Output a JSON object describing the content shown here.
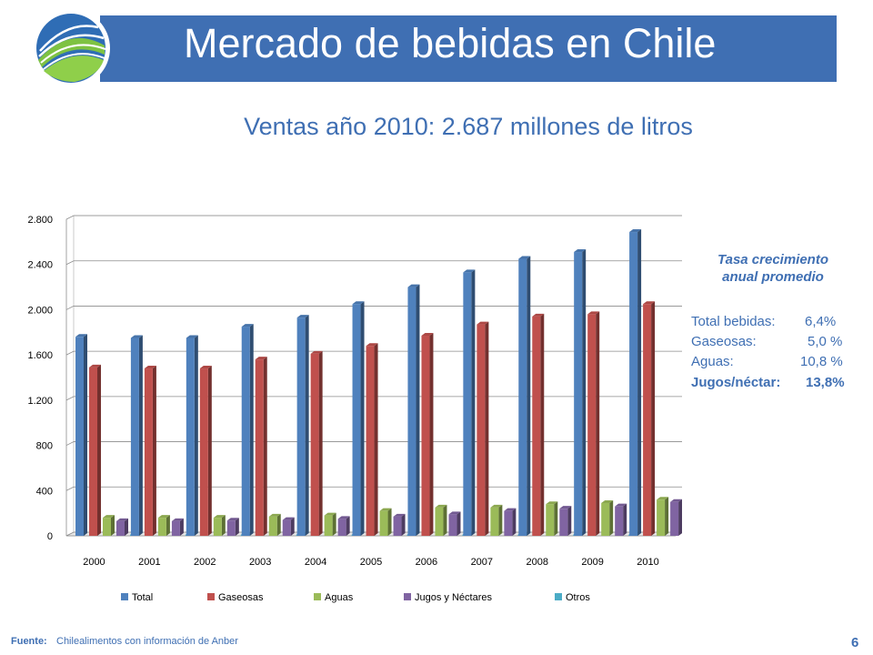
{
  "header": {
    "title": "Mercado de bebidas en Chile"
  },
  "subtitle": "Ventas año 2010: 2.687 millones de litros",
  "side_panel": {
    "heading_line1": "Tasa crecimiento",
    "heading_line2": "anual promedio",
    "rates": [
      {
        "label": "Total bebidas:",
        "value": "6,4%"
      },
      {
        "label": "Gaseosas:",
        "value": "5,0 %"
      },
      {
        "label": "Aguas:",
        "value": "10,8 %"
      },
      {
        "label": "Jugos/néctar:",
        "value": "13,8%"
      }
    ]
  },
  "footer": {
    "source_label": "Fuente:",
    "source_text": "Chilealimentos con información de Anber",
    "page_number": "6"
  },
  "chart_data": {
    "type": "bar",
    "categories": [
      "2000",
      "2001",
      "2002",
      "2003",
      "2004",
      "2005",
      "2006",
      "2007",
      "2008",
      "2009",
      "2010"
    ],
    "ylim": [
      0,
      2800
    ],
    "yticks": [
      0,
      400,
      800,
      1200,
      1600,
      2000,
      2400,
      2800
    ],
    "ytick_labels": [
      "0",
      "400",
      "800",
      "1.200",
      "1.600",
      "2.000",
      "2.400",
      "2.800"
    ],
    "grid": true,
    "legend_position": "bottom",
    "series": [
      {
        "name": "Total",
        "color": "#4f81bd",
        "values": [
          1760,
          1750,
          1750,
          1850,
          1930,
          2050,
          2200,
          2330,
          2450,
          2510,
          2687
        ]
      },
      {
        "name": "Gaseosas",
        "color": "#c0504d",
        "values": [
          1490,
          1480,
          1480,
          1560,
          1610,
          1680,
          1770,
          1870,
          1940,
          1960,
          2050
        ]
      },
      {
        "name": "Aguas",
        "color": "#9bbb59",
        "values": [
          160,
          160,
          160,
          170,
          180,
          220,
          250,
          250,
          280,
          290,
          320
        ]
      },
      {
        "name": "Jugos y Néctares",
        "color": "#8064a2",
        "values": [
          130,
          130,
          135,
          140,
          150,
          170,
          190,
          220,
          240,
          260,
          300
        ]
      },
      {
        "name": "Otros",
        "color": "#4bacc6",
        "values": [
          10,
          10,
          10,
          10,
          10,
          10,
          10,
          10,
          10,
          10,
          15
        ]
      }
    ]
  }
}
